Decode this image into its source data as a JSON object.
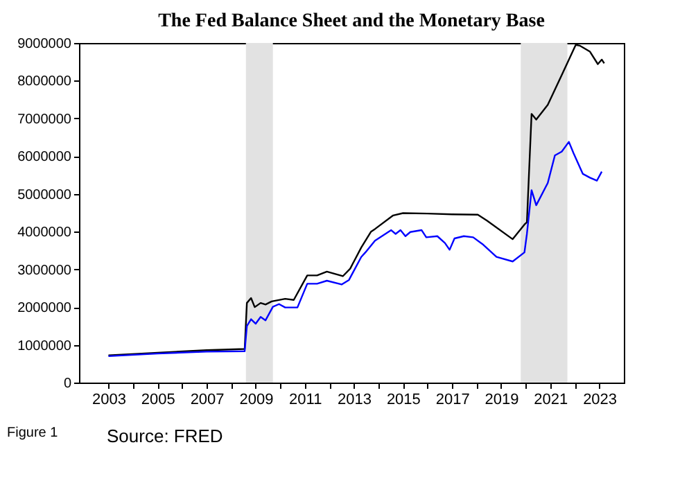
{
  "chart_data": {
    "type": "line",
    "title": "The Fed Balance Sheet and the Monetary Base",
    "annotations": [
      "Figure 1",
      "Source: FRED"
    ],
    "xlim": [
      2001.8,
      2024.0
    ],
    "xticks": [
      2003,
      {
        "value": 2004,
        "label": null
      },
      2005,
      {
        "value": 2006,
        "label": null
      },
      2007,
      {
        "value": 2008,
        "label": null
      },
      2009,
      {
        "value": 2010,
        "label": null
      },
      2011,
      {
        "value": 2012,
        "label": null
      },
      2013,
      {
        "value": 2014,
        "label": null
      },
      2015,
      {
        "value": 2016,
        "label": null
      },
      2017,
      {
        "value": 2018,
        "label": null
      },
      2019,
      {
        "value": 2020,
        "label": null
      },
      2021,
      {
        "value": 2022,
        "label": null
      },
      2023
    ],
    "ylim": [
      0,
      9000000
    ],
    "yticks": [
      0,
      1000000,
      2000000,
      3000000,
      4000000,
      5000000,
      6000000,
      7000000,
      8000000,
      9000000
    ],
    "grid": false,
    "legend": false,
    "bands": [
      {
        "axis": "x",
        "from": 2008.6,
        "to": 2009.7,
        "color": "#e2e2e2"
      },
      {
        "axis": "x",
        "from": 2019.8,
        "to": 2021.7,
        "color": "#e2e2e2"
      }
    ],
    "series": [
      {
        "color": "#000000",
        "x": [
          2003.0,
          2005.0,
          2007.0,
          2008.55,
          2008.64,
          2008.81,
          2008.96,
          2009.2,
          2009.4,
          2009.65,
          2010.2,
          2010.55,
          2011.1,
          2011.5,
          2011.9,
          2012.55,
          2012.85,
          2013.3,
          2013.7,
          2013.86,
          2014.6,
          2015.0,
          2016.0,
          2017.0,
          2018.05,
          2018.43,
          2019.47,
          2019.95,
          2020.05,
          2020.24,
          2020.43,
          2020.9,
          2021.47,
          2022.04,
          2022.2,
          2022.62,
          2022.94,
          2023.1,
          2023.2
        ],
        "values": [
          720000,
          790000,
          860000,
          890000,
          2110000,
          2240000,
          2000000,
          2110000,
          2070000,
          2150000,
          2220000,
          2190000,
          2840000,
          2840000,
          2940000,
          2820000,
          3020000,
          3580000,
          4000000,
          4070000,
          4430000,
          4490000,
          4480000,
          4460000,
          4450000,
          4290000,
          3800000,
          4190000,
          4250000,
          7120000,
          6970000,
          7360000,
          8150000,
          8950000,
          8930000,
          8770000,
          8440000,
          8560000,
          8460000
        ]
      },
      {
        "color": "#0000ff",
        "x": [
          2003.0,
          2005.0,
          2007.0,
          2008.55,
          2008.64,
          2008.81,
          2009.0,
          2009.2,
          2009.4,
          2009.7,
          2009.95,
          2010.2,
          2010.7,
          2011.1,
          2011.5,
          2011.9,
          2012.5,
          2012.8,
          2013.3,
          2013.47,
          2013.86,
          2014.52,
          2014.7,
          2014.9,
          2015.1,
          2015.3,
          2015.76,
          2015.95,
          2016.4,
          2016.71,
          2016.9,
          2017.1,
          2017.48,
          2017.86,
          2018.24,
          2018.81,
          2019.47,
          2019.95,
          2020.05,
          2020.24,
          2020.43,
          2020.9,
          2021.19,
          2021.47,
          2021.76,
          2021.95,
          2022.33,
          2022.62,
          2022.9,
          2023.1
        ],
        "values": [
          700000,
          770000,
          820000,
          830000,
          1500000,
          1680000,
          1560000,
          1740000,
          1650000,
          2010000,
          2080000,
          1990000,
          1990000,
          2620000,
          2620000,
          2700000,
          2600000,
          2720000,
          3330000,
          3450000,
          3760000,
          4040000,
          3940000,
          4040000,
          3880000,
          3990000,
          4040000,
          3850000,
          3880000,
          3700000,
          3520000,
          3820000,
          3880000,
          3850000,
          3670000,
          3330000,
          3210000,
          3450000,
          3940000,
          5100000,
          4700000,
          5290000,
          6020000,
          6120000,
          6380000,
          6080000,
          5530000,
          5430000,
          5350000,
          5590000
        ]
      }
    ]
  }
}
